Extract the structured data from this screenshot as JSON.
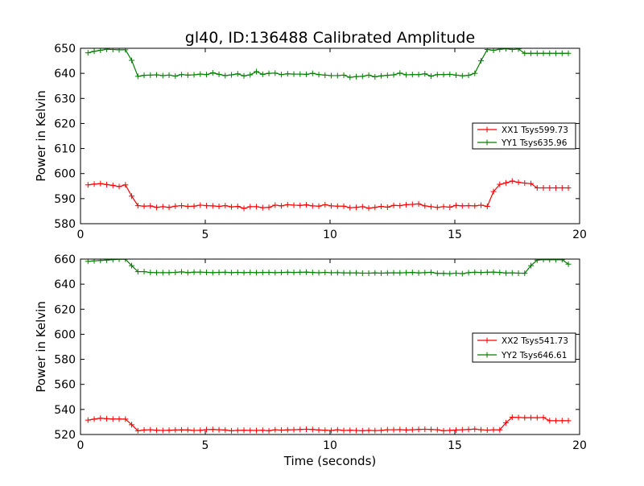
{
  "chart_data": [
    {
      "type": "line",
      "title": "gl40, ID:136488 Calibrated Amplitude",
      "xlabel": "",
      "ylabel": "Power in Kelvin",
      "xlim": [
        0,
        20
      ],
      "ylim": [
        580,
        650
      ],
      "xticks": [
        0,
        5,
        10,
        15,
        20
      ],
      "yticks": [
        580,
        590,
        600,
        610,
        620,
        630,
        640,
        650
      ],
      "grid": false,
      "legend_position": "center-right",
      "x": [
        0.3,
        0.55,
        0.8,
        1.05,
        1.3,
        1.55,
        1.8,
        2.05,
        2.3,
        2.55,
        2.8,
        3.05,
        3.3,
        3.55,
        3.8,
        4.05,
        4.3,
        4.55,
        4.8,
        5.05,
        5.3,
        5.55,
        5.8,
        6.05,
        6.3,
        6.55,
        6.8,
        7.05,
        7.3,
        7.55,
        7.8,
        8.05,
        8.3,
        8.55,
        8.8,
        9.05,
        9.3,
        9.55,
        9.8,
        10.05,
        10.3,
        10.55,
        10.8,
        11.05,
        11.3,
        11.55,
        11.8,
        12.05,
        12.3,
        12.55,
        12.8,
        13.05,
        13.3,
        13.55,
        13.8,
        14.05,
        14.3,
        14.55,
        14.8,
        15.05,
        15.3,
        15.55,
        15.8,
        16.05,
        16.3,
        16.55,
        16.8,
        17.05,
        17.3,
        17.55,
        17.8,
        18.05,
        18.3,
        18.55,
        18.8,
        19.05,
        19.3,
        19.55
      ],
      "series": [
        {
          "name": "XX1 Tsys599.73",
          "color": "#ff0000",
          "values": [
            595.5,
            595.8,
            596.0,
            595.6,
            595.3,
            594.8,
            595.5,
            591.0,
            587.2,
            587.0,
            587.1,
            586.5,
            586.8,
            586.5,
            587.0,
            587.2,
            586.9,
            587.0,
            587.4,
            587.2,
            587.1,
            586.9,
            587.2,
            586.7,
            586.9,
            586.1,
            586.8,
            586.8,
            586.4,
            586.5,
            587.4,
            587.1,
            587.6,
            587.4,
            587.3,
            587.5,
            587.1,
            587.0,
            587.6,
            587.1,
            587.0,
            587.0,
            586.4,
            586.5,
            586.8,
            586.2,
            586.5,
            586.9,
            586.6,
            587.3,
            587.2,
            587.6,
            587.7,
            587.9,
            587.1,
            586.8,
            586.5,
            586.8,
            586.6,
            587.3,
            587.1,
            587.2,
            587.1,
            587.4,
            586.9,
            592.8,
            595.7,
            596.3,
            597.0,
            596.5,
            596.2,
            596.0,
            594.3,
            594.3,
            594.3,
            594.3,
            594.3,
            594.3
          ]
        },
        {
          "name": "YY1 Tsys635.96",
          "color": "#008000",
          "values": [
            648.2,
            648.8,
            649.2,
            649.6,
            649.5,
            649.4,
            649.4,
            645.2,
            638.8,
            639.2,
            639.3,
            639.4,
            639.1,
            639.3,
            638.9,
            639.5,
            639.3,
            639.4,
            639.7,
            639.5,
            640.2,
            639.6,
            639.1,
            639.4,
            639.8,
            639.0,
            639.4,
            640.7,
            639.6,
            640.0,
            640.1,
            639.5,
            639.8,
            639.7,
            639.7,
            639.6,
            640.0,
            639.5,
            639.3,
            639.1,
            639.1,
            639.3,
            638.4,
            638.7,
            638.8,
            639.3,
            638.6,
            639.0,
            639.2,
            639.4,
            640.1,
            639.4,
            639.5,
            639.5,
            639.8,
            638.9,
            639.5,
            639.5,
            639.6,
            639.3,
            639.0,
            639.2,
            640.0,
            645.0,
            649.5,
            649.2,
            649.6,
            649.8,
            649.5,
            649.7,
            648.0,
            648.0,
            648.0,
            648.0,
            648.0,
            648.0,
            648.0,
            648.0
          ]
        }
      ]
    },
    {
      "type": "line",
      "title": "",
      "xlabel": "Time (seconds)",
      "ylabel": "Power in Kelvin",
      "xlim": [
        0,
        20
      ],
      "ylim": [
        520,
        660
      ],
      "xticks": [
        0,
        5,
        10,
        15,
        20
      ],
      "yticks": [
        520,
        540,
        560,
        580,
        600,
        620,
        640,
        660
      ],
      "grid": false,
      "legend_position": "center-right",
      "x": [
        0.3,
        0.55,
        0.8,
        1.05,
        1.3,
        1.55,
        1.8,
        2.05,
        2.3,
        2.55,
        2.8,
        3.05,
        3.3,
        3.55,
        3.8,
        4.05,
        4.3,
        4.55,
        4.8,
        5.05,
        5.3,
        5.55,
        5.8,
        6.05,
        6.3,
        6.55,
        6.8,
        7.05,
        7.3,
        7.55,
        7.8,
        8.05,
        8.3,
        8.55,
        8.8,
        9.05,
        9.3,
        9.55,
        9.8,
        10.05,
        10.3,
        10.55,
        10.8,
        11.05,
        11.3,
        11.55,
        11.8,
        12.05,
        12.3,
        12.55,
        12.8,
        13.05,
        13.3,
        13.55,
        13.8,
        14.05,
        14.3,
        14.55,
        14.8,
        15.05,
        15.3,
        15.55,
        15.8,
        16.05,
        16.3,
        16.55,
        16.8,
        17.05,
        17.3,
        17.55,
        17.8,
        18.05,
        18.3,
        18.55,
        18.8,
        19.05,
        19.3,
        19.55
      ],
      "series": [
        {
          "name": "XX2 Tsys541.73",
          "color": "#ff0000",
          "values": [
            531.5,
            532.3,
            533.0,
            532.6,
            532.4,
            532.4,
            532.3,
            527.8,
            523.0,
            523.6,
            523.8,
            523.4,
            523.2,
            523.4,
            523.6,
            523.7,
            523.7,
            523.2,
            523.4,
            523.9,
            524.0,
            523.8,
            523.6,
            523.0,
            523.3,
            523.4,
            523.3,
            523.2,
            523.4,
            523.0,
            523.8,
            523.5,
            523.7,
            523.8,
            524.0,
            524.2,
            524.0,
            523.6,
            523.4,
            523.2,
            523.8,
            523.2,
            523.4,
            523.2,
            523.0,
            523.3,
            523.1,
            523.3,
            523.8,
            523.8,
            523.9,
            523.6,
            523.8,
            524.0,
            524.2,
            524.0,
            523.8,
            523.0,
            523.3,
            523.6,
            523.8,
            524.0,
            524.3,
            523.8,
            523.5,
            523.8,
            523.7,
            529.4,
            533.8,
            533.6,
            533.4,
            533.5,
            533.4,
            533.6,
            531.0,
            531.0,
            531.0,
            531.0
          ]
        },
        {
          "name": "YY2 Tsys646.61",
          "color": "#008000",
          "values": [
            658.2,
            658.6,
            658.9,
            659.2,
            659.6,
            659.9,
            659.9,
            654.8,
            650.0,
            650.0,
            649.3,
            649.2,
            649.2,
            649.2,
            649.4,
            649.8,
            649.2,
            649.6,
            649.6,
            649.4,
            649.2,
            649.4,
            649.5,
            649.2,
            649.4,
            649.2,
            649.4,
            649.2,
            649.3,
            649.4,
            649.2,
            649.3,
            649.5,
            649.3,
            649.5,
            649.6,
            649.3,
            649.1,
            649.4,
            649.1,
            649.2,
            649.0,
            649.0,
            649.0,
            648.8,
            648.8,
            649.0,
            648.8,
            649.0,
            649.1,
            649.0,
            649.2,
            649.3,
            649.0,
            649.2,
            649.5,
            648.6,
            648.6,
            648.4,
            648.8,
            648.4,
            649.2,
            649.5,
            649.3,
            649.5,
            649.6,
            649.3,
            648.9,
            649.0,
            648.8,
            648.7,
            654.8,
            659.2,
            659.6,
            659.5,
            659.5,
            659.5,
            656.0
          ]
        }
      ]
    }
  ]
}
